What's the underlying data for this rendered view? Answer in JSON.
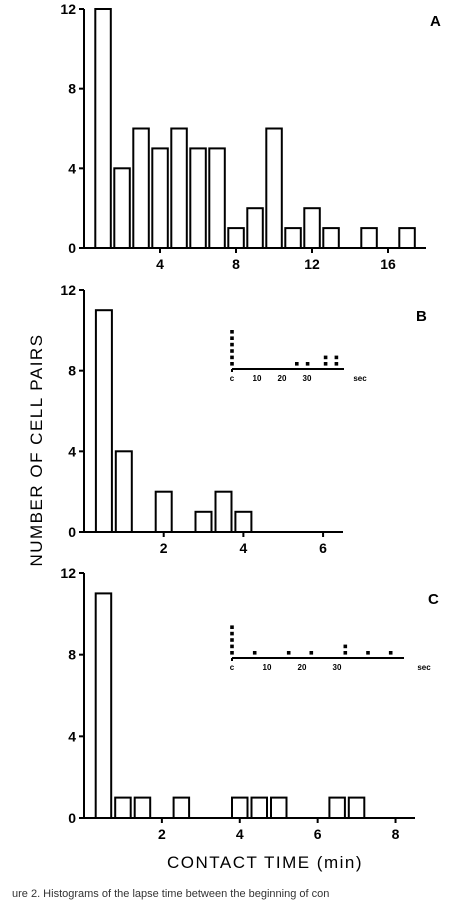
{
  "chart_data": [
    {
      "type": "bar",
      "panel_label": "A",
      "x": [
        1,
        2,
        3,
        4,
        5,
        6,
        7,
        8,
        9,
        10,
        11,
        12,
        13,
        15,
        17
      ],
      "values": [
        12,
        4,
        6,
        5,
        6,
        5,
        5,
        1,
        2,
        6,
        1,
        2,
        1,
        1,
        1
      ],
      "xlim": [
        0,
        18
      ],
      "ylim": [
        0,
        12
      ],
      "xticks": [
        4,
        8,
        12,
        16
      ],
      "xtick_labels": [
        "4",
        "8",
        "12",
        "16"
      ],
      "yticks": [
        0,
        4,
        8,
        12
      ],
      "ytick_labels": [
        "0",
        "4",
        "8",
        "12"
      ],
      "grid": false
    },
    {
      "type": "bar",
      "panel_label": "B",
      "x": [
        0.5,
        1,
        2,
        3,
        3.5,
        4
      ],
      "values": [
        11,
        4,
        2,
        1,
        2,
        1
      ],
      "xlim": [
        0,
        6.5
      ],
      "ylim": [
        0,
        12
      ],
      "xticks": [
        2,
        4,
        6
      ],
      "xtick_labels": [
        "2",
        "4",
        "6"
      ],
      "yticks": [
        0,
        4,
        8,
        12
      ],
      "ytick_labels": [
        "0",
        "4",
        "8",
        "12"
      ],
      "grid": false,
      "inset": {
        "type": "dot-histogram",
        "xtick_labels": [
          "c",
          "10",
          "20",
          "30"
        ],
        "unit": "sec",
        "columns": [
          {
            "x": 0,
            "count": 6
          },
          {
            "x": 18,
            "count": 1
          },
          {
            "x": 21,
            "count": 1
          },
          {
            "x": 26,
            "count": 2
          },
          {
            "x": 29,
            "count": 2
          }
        ]
      }
    },
    {
      "type": "bar",
      "panel_label": "C",
      "x": [
        0.5,
        1,
        1.5,
        2.5,
        4,
        4.5,
        5,
        6.5,
        7
      ],
      "values": [
        11,
        1,
        1,
        1,
        1,
        1,
        1,
        1,
        1
      ],
      "xlim": [
        0,
        8.5
      ],
      "ylim": [
        0,
        12
      ],
      "xticks": [
        2,
        4,
        6,
        8
      ],
      "xtick_labels": [
        "2",
        "4",
        "6",
        "8"
      ],
      "yticks": [
        0,
        4,
        8,
        12
      ],
      "ytick_labels": [
        "0",
        "4",
        "8",
        "12"
      ],
      "grid": false,
      "inset": {
        "type": "dot-histogram",
        "xtick_labels": [
          "c",
          "10",
          "20",
          "30"
        ],
        "unit": "sec",
        "columns": [
          {
            "x": 0,
            "count": 5
          },
          {
            "x": 4,
            "count": 1
          },
          {
            "x": 10,
            "count": 1
          },
          {
            "x": 14,
            "count": 1
          },
          {
            "x": 20,
            "count": 2
          },
          {
            "x": 24,
            "count": 1
          },
          {
            "x": 28,
            "count": 1
          }
        ]
      }
    }
  ],
  "ylabel": "NUMBER OF CELL PAIRS",
  "xlabel": "CONTACT TIME  (min)",
  "caption_fragment": "ure 2.   Histograms of the lapse time between the beginning of con"
}
